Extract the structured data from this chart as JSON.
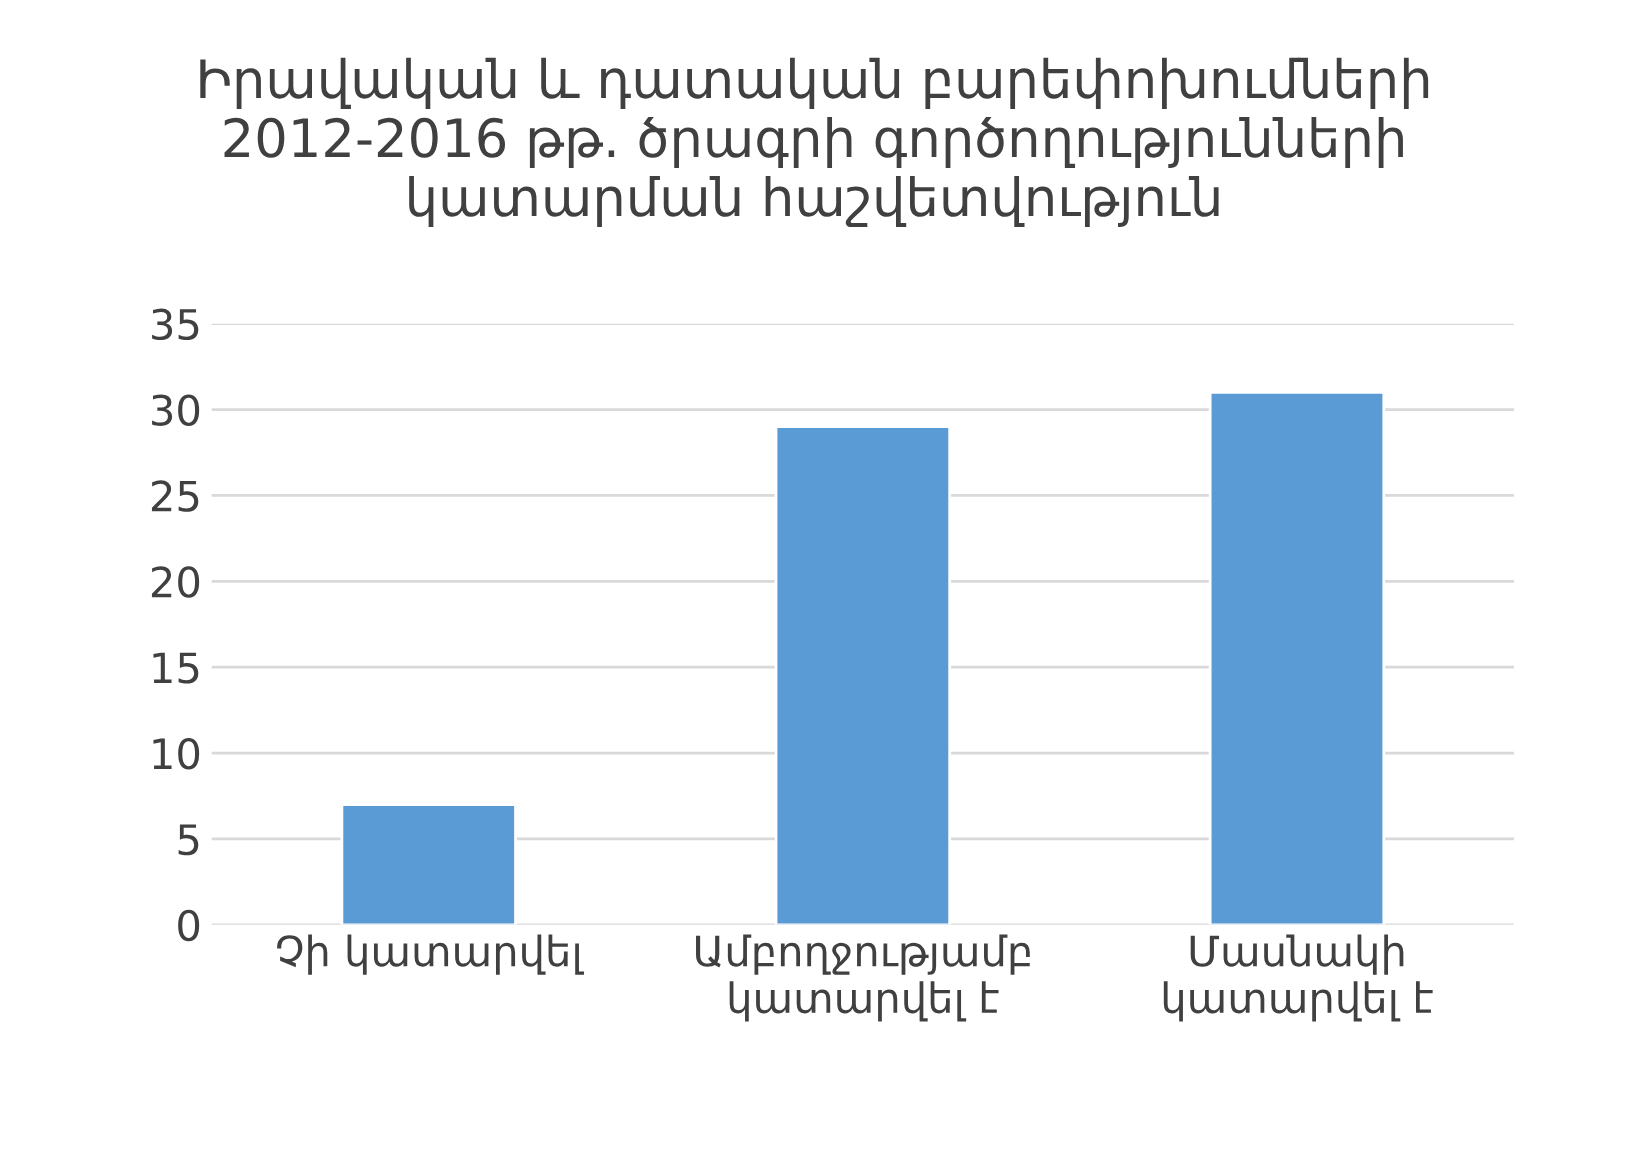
{
  "chart_data": {
    "type": "bar",
    "title": "Իրավական և դատական բարեփոխումների\n2012-2016 թթ. ծրագրի գործողությունների\nկատարման հաշվետվություն",
    "categories": [
      "Չի կատարվել",
      "Ամբողջությամբ\nկատարվել է",
      "Մասնակի\nկատարվել է"
    ],
    "values": [
      7,
      29,
      31
    ],
    "color": "#5b9bd5",
    "ylim": [
      0,
      35
    ],
    "yticks": [
      0,
      5,
      10,
      15,
      20,
      25,
      30,
      35
    ],
    "grid": "y",
    "legend": false
  }
}
